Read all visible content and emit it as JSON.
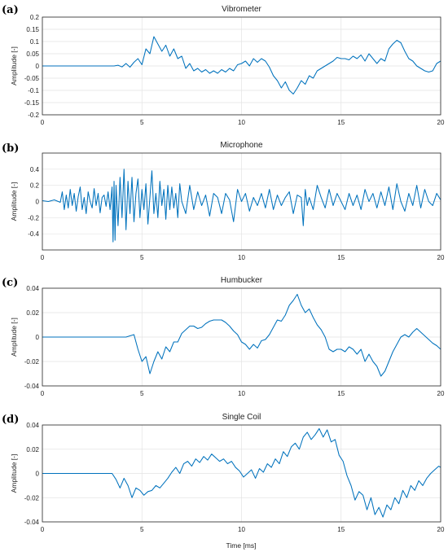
{
  "figure": {
    "xlabel": "Time [ms]",
    "line_color": "#0072BD"
  },
  "chart_data": [
    {
      "type": "line",
      "panel_label": "(a)",
      "title": "Vibrometer",
      "xlabel": "",
      "ylabel": "Amplitude [-]",
      "xlim": [
        0,
        20
      ],
      "ylim": [
        -0.2,
        0.2
      ],
      "x_ticks": [
        0,
        5,
        10,
        15,
        20
      ],
      "y_ticks": [
        -0.2,
        -0.15,
        -0.1,
        -0.05,
        0,
        0.05,
        0.1,
        0.15,
        0.2
      ],
      "y_tick_labels": [
        "-0.2",
        "-0.15",
        "-0.1",
        "-0.05",
        "0",
        "0.05",
        "0.1",
        "0.15",
        "0.2"
      ],
      "grid": true,
      "series": [
        {
          "x": [
            0,
            3.6,
            3.8,
            4.0,
            4.2,
            4.4,
            4.6,
            4.8,
            5.0,
            5.2,
            5.4,
            5.6,
            5.8,
            6.0,
            6.2,
            6.4,
            6.6,
            6.8,
            7.0,
            7.2,
            7.4,
            7.6,
            7.8,
            8.0,
            8.2,
            8.4,
            8.6,
            8.8,
            9.0,
            9.2,
            9.4,
            9.6,
            9.8,
            10.0,
            10.2,
            10.4,
            10.6,
            10.8,
            11.0,
            11.2,
            11.4,
            11.6,
            11.8,
            12.0,
            12.2,
            12.4,
            12.6,
            12.8,
            13.0,
            13.2,
            13.4,
            13.6,
            13.8,
            14.0,
            14.2,
            14.4,
            14.6,
            14.8,
            15.0,
            15.2,
            15.4,
            15.6,
            15.8,
            16.0,
            16.2,
            16.4,
            16.6,
            16.8,
            17.0,
            17.2,
            17.4,
            17.6,
            17.8,
            18.0,
            18.2,
            18.4,
            18.6,
            18.8,
            19.0,
            19.2,
            19.4,
            19.6,
            19.8,
            20.0
          ],
          "y": [
            0,
            0,
            0.003,
            -0.004,
            0.01,
            -0.005,
            0.015,
            0.03,
            0.005,
            0.07,
            0.05,
            0.12,
            0.09,
            0.06,
            0.085,
            0.04,
            0.07,
            0.03,
            0.04,
            -0.01,
            0.01,
            -0.02,
            -0.01,
            -0.025,
            -0.015,
            -0.03,
            -0.02,
            -0.03,
            -0.015,
            -0.025,
            -0.01,
            -0.02,
            0.005,
            0.01,
            0.02,
            0.0,
            0.03,
            0.015,
            0.03,
            0.02,
            -0.005,
            -0.04,
            -0.06,
            -0.09,
            -0.065,
            -0.1,
            -0.115,
            -0.09,
            -0.06,
            -0.075,
            -0.04,
            -0.05,
            -0.02,
            -0.01,
            0.0,
            0.01,
            0.02,
            0.035,
            0.03,
            0.03,
            0.025,
            0.04,
            0.03,
            0.045,
            0.02,
            0.05,
            0.03,
            0.01,
            0.03,
            0.02,
            0.07,
            0.09,
            0.105,
            0.095,
            0.06,
            0.03,
            0.02,
            0.0,
            -0.01,
            -0.02,
            -0.025,
            -0.02,
            0.01,
            0.02
          ]
        }
      ]
    },
    {
      "type": "line",
      "panel_label": "(b)",
      "title": "Microphone",
      "xlabel": "",
      "ylabel": "Amplitude [-]",
      "xlim": [
        0,
        20
      ],
      "ylim": [
        -0.6,
        0.6
      ],
      "x_ticks": [
        0,
        5,
        10,
        15,
        20
      ],
      "y_ticks": [
        -0.4,
        -0.2,
        0,
        0.2,
        0.4
      ],
      "y_tick_labels": [
        "-0.4",
        "-0.2",
        "0",
        "0.2",
        "0.4"
      ],
      "grid": true,
      "series": [
        {
          "x": [
            0,
            0.3,
            0.6,
            0.9,
            1.0,
            1.1,
            1.2,
            1.3,
            1.4,
            1.5,
            1.6,
            1.7,
            1.8,
            1.9,
            2.0,
            2.1,
            2.2,
            2.3,
            2.4,
            2.5,
            2.6,
            2.7,
            2.8,
            2.9,
            3.0,
            3.1,
            3.2,
            3.3,
            3.4,
            3.5,
            3.55,
            3.6,
            3.65,
            3.7,
            3.8,
            3.9,
            4.0,
            4.1,
            4.2,
            4.3,
            4.4,
            4.5,
            4.6,
            4.7,
            4.8,
            4.9,
            5.0,
            5.1,
            5.2,
            5.3,
            5.4,
            5.5,
            5.6,
            5.7,
            5.8,
            5.9,
            6.0,
            6.1,
            6.2,
            6.3,
            6.4,
            6.5,
            6.6,
            6.7,
            6.8,
            6.9,
            7.0,
            7.2,
            7.4,
            7.6,
            7.8,
            8.0,
            8.2,
            8.4,
            8.6,
            8.8,
            9.0,
            9.2,
            9.4,
            9.6,
            9.8,
            10.0,
            10.2,
            10.4,
            10.6,
            10.8,
            11.0,
            11.2,
            11.4,
            11.6,
            11.8,
            12.0,
            12.2,
            12.4,
            12.6,
            12.8,
            13.0,
            13.1,
            13.2,
            13.3,
            13.4,
            13.6,
            13.8,
            14.0,
            14.2,
            14.4,
            14.6,
            14.8,
            15.0,
            15.2,
            15.4,
            15.6,
            15.8,
            16.0,
            16.2,
            16.4,
            16.6,
            16.8,
            17.0,
            17.2,
            17.4,
            17.6,
            17.8,
            18.0,
            18.2,
            18.4,
            18.6,
            18.8,
            19.0,
            19.2,
            19.4,
            19.6,
            19.8,
            20.0
          ],
          "y": [
            0.01,
            0.0,
            0.02,
            -0.01,
            0.12,
            -0.1,
            0.08,
            -0.08,
            0.15,
            -0.05,
            0.1,
            -0.12,
            0.06,
            0.18,
            -0.1,
            0.05,
            -0.15,
            0.12,
            0.0,
            -0.08,
            0.16,
            -0.05,
            0.1,
            -0.14,
            0.05,
            0.08,
            -0.06,
            0.12,
            -0.1,
            0.18,
            -0.5,
            0.25,
            -0.48,
            0.2,
            -0.3,
            0.3,
            -0.2,
            0.4,
            -0.35,
            0.25,
            -0.15,
            0.3,
            -0.25,
            0.1,
            0.28,
            -0.2,
            0.15,
            -0.1,
            0.22,
            -0.28,
            0.05,
            0.38,
            -0.15,
            0.1,
            -0.2,
            0.25,
            -0.05,
            0.15,
            -0.22,
            0.2,
            -0.1,
            0.18,
            -0.08,
            0.1,
            -0.2,
            0.22,
            0.0,
            -0.15,
            0.2,
            -0.1,
            0.12,
            -0.05,
            0.08,
            -0.18,
            0.1,
            0.05,
            -0.15,
            0.1,
            0.02,
            -0.25,
            0.15,
            0.0,
            0.1,
            -0.12,
            0.05,
            -0.05,
            0.1,
            -0.08,
            0.15,
            -0.1,
            0.08,
            -0.05,
            0.05,
            0.12,
            -0.15,
            0.08,
            0.05,
            -0.3,
            0.15,
            -0.05,
            0.05,
            -0.1,
            0.2,
            0.05,
            -0.08,
            0.15,
            -0.05,
            0.1,
            0.0,
            -0.1,
            0.1,
            -0.05,
            0.08,
            -0.1,
            0.15,
            0.0,
            0.1,
            -0.08,
            0.12,
            -0.05,
            0.18,
            -0.1,
            0.22,
            0.0,
            -0.12,
            0.1,
            -0.05,
            0.2,
            -0.08,
            0.15,
            0.0,
            -0.05,
            0.1,
            0.02
          ]
        }
      ]
    },
    {
      "type": "line",
      "panel_label": "(c)",
      "title": "Humbucker",
      "xlabel": "",
      "ylabel": "Amplitude [-]",
      "xlim": [
        0,
        20
      ],
      "ylim": [
        -0.04,
        0.04
      ],
      "x_ticks": [
        0,
        5,
        10,
        15,
        20
      ],
      "y_ticks": [
        -0.04,
        -0.02,
        0,
        0.02,
        0.04
      ],
      "y_tick_labels": [
        "-0.04",
        "-0.02",
        "0",
        "0.02",
        "0.04"
      ],
      "grid": true,
      "series": [
        {
          "x": [
            0,
            4.2,
            4.4,
            4.6,
            4.8,
            5.0,
            5.2,
            5.4,
            5.6,
            5.8,
            6.0,
            6.2,
            6.4,
            6.6,
            6.8,
            7.0,
            7.2,
            7.4,
            7.6,
            7.8,
            8.0,
            8.2,
            8.4,
            8.6,
            8.8,
            9.0,
            9.2,
            9.4,
            9.6,
            9.8,
            10.0,
            10.2,
            10.4,
            10.6,
            10.8,
            11.0,
            11.2,
            11.4,
            11.6,
            11.8,
            12.0,
            12.2,
            12.4,
            12.6,
            12.8,
            13.0,
            13.2,
            13.4,
            13.6,
            13.8,
            14.0,
            14.2,
            14.4,
            14.6,
            14.8,
            15.0,
            15.2,
            15.4,
            15.6,
            15.8,
            16.0,
            16.2,
            16.4,
            16.6,
            16.8,
            17.0,
            17.2,
            17.4,
            17.6,
            17.8,
            18.0,
            18.2,
            18.4,
            18.6,
            18.8,
            19.0,
            19.2,
            19.4,
            19.6,
            19.8,
            20.0
          ],
          "y": [
            0,
            0,
            0.001,
            0.002,
            -0.01,
            -0.02,
            -0.016,
            -0.03,
            -0.02,
            -0.012,
            -0.018,
            -0.008,
            -0.012,
            -0.004,
            -0.004,
            0.003,
            0.006,
            0.009,
            0.009,
            0.007,
            0.008,
            0.011,
            0.013,
            0.014,
            0.014,
            0.014,
            0.012,
            0.009,
            0.005,
            0.002,
            -0.004,
            -0.006,
            -0.01,
            -0.006,
            -0.009,
            -0.003,
            -0.002,
            0.002,
            0.008,
            0.014,
            0.013,
            0.018,
            0.026,
            0.03,
            0.035,
            0.026,
            0.02,
            0.023,
            0.016,
            0.01,
            0.006,
            0.0,
            -0.01,
            -0.012,
            -0.01,
            -0.01,
            -0.012,
            -0.008,
            -0.01,
            -0.014,
            -0.01,
            -0.02,
            -0.014,
            -0.02,
            -0.024,
            -0.032,
            -0.028,
            -0.02,
            -0.012,
            -0.006,
            0.0,
            0.002,
            0.0,
            0.004,
            0.007,
            0.004,
            0.001,
            -0.002,
            -0.005,
            -0.007,
            -0.01
          ]
        }
      ]
    },
    {
      "type": "line",
      "panel_label": "(d)",
      "title": "Single Coil",
      "xlabel": "Time [ms]",
      "ylabel": "Amplitude [-]",
      "xlim": [
        0,
        20
      ],
      "ylim": [
        -0.04,
        0.04
      ],
      "x_ticks": [
        0,
        5,
        10,
        15,
        20
      ],
      "y_ticks": [
        -0.04,
        -0.02,
        0,
        0.02,
        0.04
      ],
      "y_tick_labels": [
        "-0.04",
        "-0.02",
        "0",
        "0.02",
        "0.04"
      ],
      "grid": true,
      "series": [
        {
          "x": [
            0,
            3.5,
            3.7,
            3.9,
            4.1,
            4.3,
            4.5,
            4.7,
            4.9,
            5.1,
            5.3,
            5.5,
            5.7,
            5.9,
            6.1,
            6.3,
            6.5,
            6.7,
            6.9,
            7.1,
            7.3,
            7.5,
            7.7,
            7.9,
            8.1,
            8.3,
            8.5,
            8.7,
            8.9,
            9.1,
            9.3,
            9.5,
            9.7,
            9.9,
            10.1,
            10.3,
            10.5,
            10.7,
            10.9,
            11.1,
            11.3,
            11.5,
            11.7,
            11.9,
            12.1,
            12.3,
            12.5,
            12.7,
            12.9,
            13.1,
            13.3,
            13.5,
            13.7,
            13.9,
            14.1,
            14.3,
            14.5,
            14.7,
            14.9,
            15.1,
            15.3,
            15.5,
            15.7,
            15.9,
            16.1,
            16.3,
            16.5,
            16.7,
            16.9,
            17.1,
            17.3,
            17.5,
            17.7,
            17.9,
            18.1,
            18.3,
            18.5,
            18.7,
            18.9,
            19.1,
            19.3,
            19.5,
            19.7,
            19.9,
            20.0
          ],
          "y": [
            0,
            0,
            -0.005,
            -0.012,
            -0.004,
            -0.01,
            -0.02,
            -0.012,
            -0.014,
            -0.018,
            -0.015,
            -0.014,
            -0.01,
            -0.012,
            -0.008,
            -0.004,
            0.001,
            0.005,
            0.0,
            0.008,
            0.01,
            0.006,
            0.012,
            0.009,
            0.014,
            0.011,
            0.016,
            0.013,
            0.01,
            0.012,
            0.008,
            0.01,
            0.005,
            0.002,
            -0.003,
            0.0,
            0.003,
            -0.004,
            0.004,
            0.001,
            0.008,
            0.005,
            0.012,
            0.008,
            0.018,
            0.014,
            0.022,
            0.025,
            0.02,
            0.03,
            0.034,
            0.028,
            0.032,
            0.037,
            0.03,
            0.036,
            0.026,
            0.028,
            0.015,
            0.01,
            -0.002,
            -0.01,
            -0.022,
            -0.015,
            -0.018,
            -0.03,
            -0.02,
            -0.034,
            -0.028,
            -0.036,
            -0.026,
            -0.03,
            -0.02,
            -0.025,
            -0.014,
            -0.02,
            -0.01,
            -0.014,
            -0.006,
            -0.01,
            -0.004,
            0.0,
            0.003,
            0.006,
            0.005
          ]
        }
      ]
    }
  ]
}
